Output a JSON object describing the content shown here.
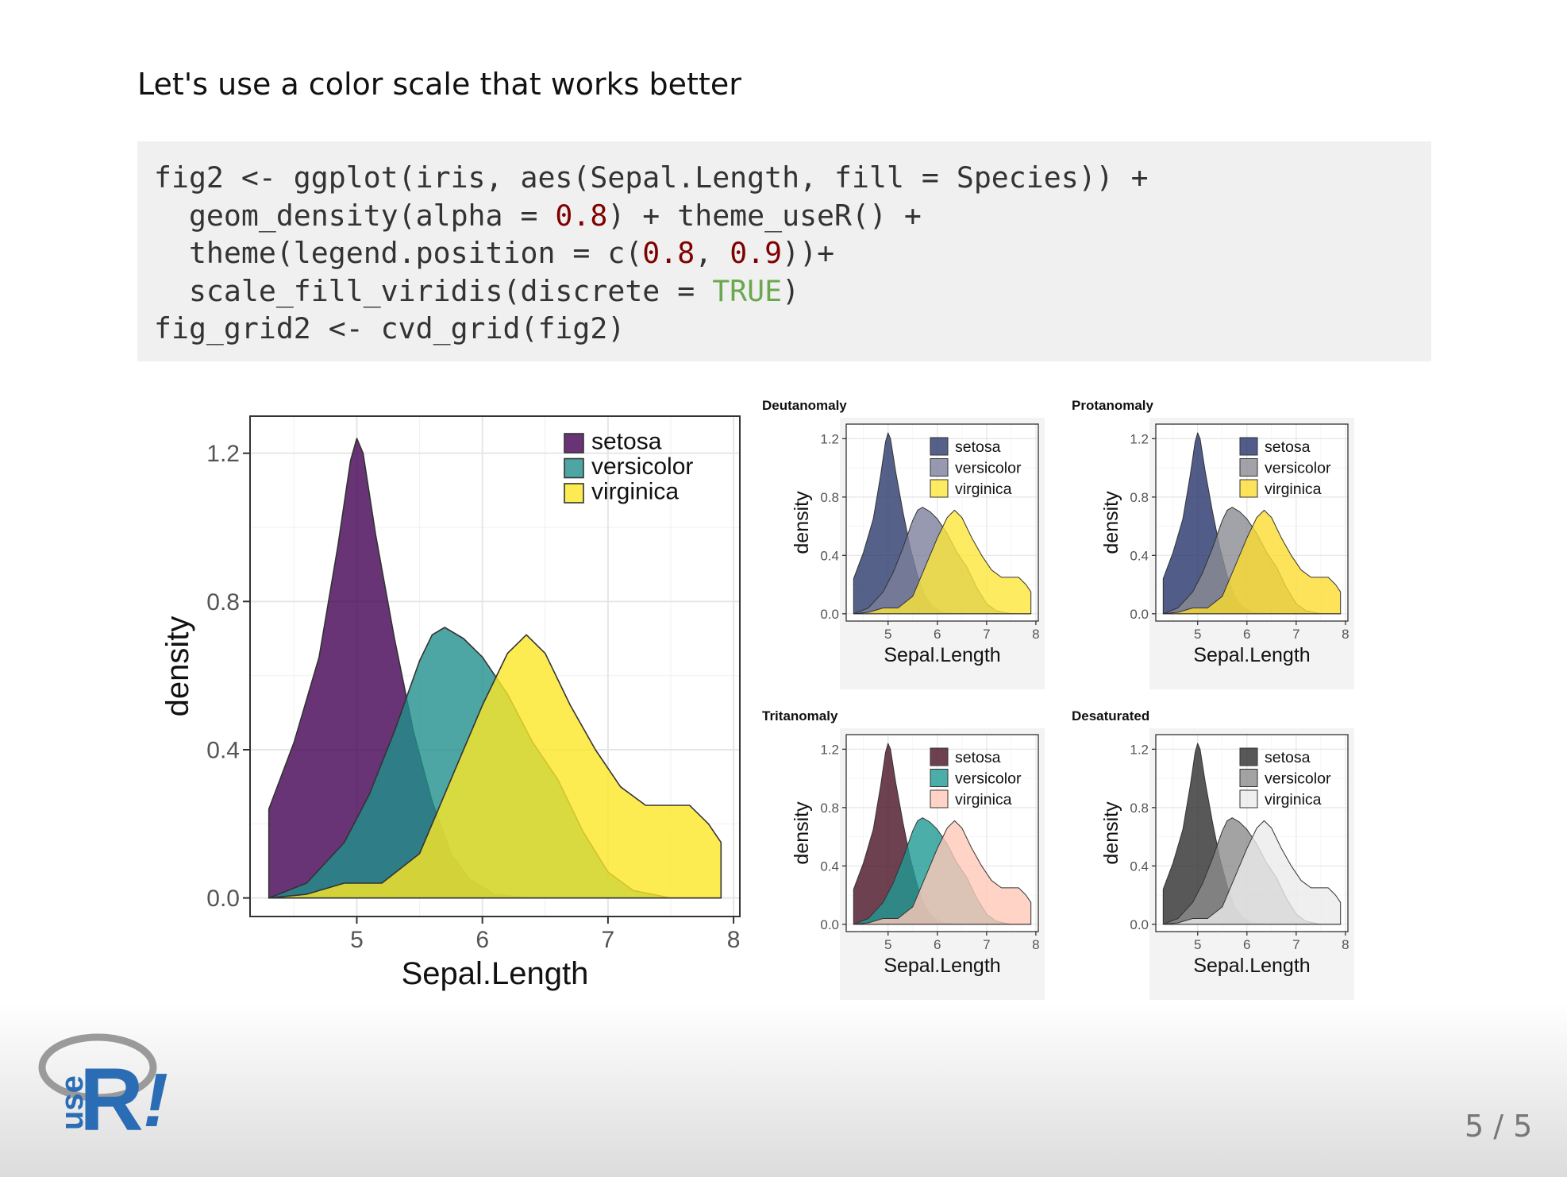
{
  "slide": {
    "heading": "Let's use a color scale that works better",
    "page_counter": "5 / 5"
  },
  "code": {
    "lines": [
      [
        {
          "t": "fig2 <- ggplot(iris, aes(Sepal.Length, fill = Species)) +"
        }
      ],
      [
        {
          "t": "  geom_density(alpha = "
        },
        {
          "t": "0.8",
          "c": "num"
        },
        {
          "t": ") + theme_useR() +"
        }
      ],
      [
        {
          "t": "  theme(legend.position = c("
        },
        {
          "t": "0.8",
          "c": "num"
        },
        {
          "t": ", "
        },
        {
          "t": "0.9",
          "c": "num"
        },
        {
          "t": "))+"
        }
      ],
      [
        {
          "t": "  scale_fill_viridis(discrete = "
        },
        {
          "t": "TRUE",
          "c": "bool"
        },
        {
          "t": ")"
        }
      ],
      [
        {
          "t": "fig_grid2 <- cvd_grid(fig2)"
        }
      ]
    ]
  },
  "logo": {
    "letter": "R",
    "bang": "!",
    "word": "use",
    "color": "#2a6db5"
  },
  "chart_data": [
    {
      "type": "area",
      "title": "",
      "xlabel": "Sepal.Length",
      "ylabel": "density",
      "xlim": [
        4.15,
        8.05
      ],
      "ylim": [
        -0.05,
        1.3
      ],
      "x_ticks": [
        "5",
        "6",
        "7",
        "8"
      ],
      "y_ticks": [
        "0.0",
        "0.4",
        "0.8",
        "1.2"
      ],
      "legend": "top-right",
      "grid": true,
      "series": [
        {
          "name": "setosa",
          "color": "#440154",
          "x": [
            4.3,
            4.5,
            4.7,
            4.85,
            4.95,
            5.0,
            5.05,
            5.15,
            5.3,
            5.45,
            5.6,
            5.75,
            5.9,
            6.1,
            6.4,
            7.9
          ],
          "y": [
            0.24,
            0.42,
            0.65,
            0.95,
            1.18,
            1.24,
            1.2,
            0.98,
            0.7,
            0.45,
            0.26,
            0.12,
            0.05,
            0.01,
            0.0,
            0.0
          ]
        },
        {
          "name": "versicolor",
          "color": "#21908C",
          "x": [
            4.3,
            4.6,
            4.9,
            5.1,
            5.3,
            5.5,
            5.6,
            5.7,
            5.85,
            6.0,
            6.2,
            6.4,
            6.6,
            6.8,
            7.0,
            7.2,
            7.5,
            7.9
          ],
          "y": [
            0.0,
            0.04,
            0.15,
            0.28,
            0.45,
            0.64,
            0.71,
            0.73,
            0.7,
            0.65,
            0.55,
            0.42,
            0.32,
            0.18,
            0.07,
            0.02,
            0.0,
            0.0
          ]
        },
        {
          "name": "virginica",
          "color": "#FDE725",
          "x": [
            4.3,
            4.6,
            4.9,
            5.2,
            5.5,
            5.8,
            6.0,
            6.2,
            6.35,
            6.5,
            6.7,
            6.9,
            7.1,
            7.3,
            7.5,
            7.65,
            7.8,
            7.9
          ],
          "y": [
            0.0,
            0.01,
            0.04,
            0.04,
            0.12,
            0.36,
            0.52,
            0.66,
            0.71,
            0.66,
            0.52,
            0.4,
            0.3,
            0.25,
            0.25,
            0.25,
            0.2,
            0.15
          ]
        }
      ]
    },
    {
      "type": "area",
      "title": "Deutanomaly",
      "xlabel": "Sepal.Length",
      "ylabel": "density",
      "xlim": [
        4.15,
        8.05
      ],
      "ylim": [
        -0.05,
        1.3
      ],
      "x_ticks": [
        "5",
        "6",
        "7",
        "8"
      ],
      "y_ticks": [
        "0.0",
        "0.4",
        "0.8",
        "1.2"
      ],
      "legend": "top-right",
      "grid": true,
      "series": [
        {
          "name": "setosa",
          "color": "#2a3a6b",
          "same_as": 0
        },
        {
          "name": "versicolor",
          "color": "#7d7f9c",
          "same_as": 1
        },
        {
          "name": "virginica",
          "color": "#fde63a",
          "same_as": 2
        }
      ]
    },
    {
      "type": "area",
      "title": "Protanomaly",
      "xlabel": "Sepal.Length",
      "ylabel": "density",
      "xlim": [
        4.15,
        8.05
      ],
      "ylim": [
        -0.05,
        1.3
      ],
      "x_ticks": [
        "5",
        "6",
        "7",
        "8"
      ],
      "y_ticks": [
        "0.0",
        "0.4",
        "0.8",
        "1.2"
      ],
      "legend": "top-right",
      "grid": true,
      "series": [
        {
          "name": "setosa",
          "color": "#25356a",
          "same_as": 0
        },
        {
          "name": "versicolor",
          "color": "#8a8c94",
          "same_as": 1
        },
        {
          "name": "virginica",
          "color": "#fcdc30",
          "same_as": 2
        }
      ]
    },
    {
      "type": "area",
      "title": "Tritanomaly",
      "xlabel": "Sepal.Length",
      "ylabel": "density",
      "xlim": [
        4.15,
        8.05
      ],
      "ylim": [
        -0.05,
        1.3
      ],
      "x_ticks": [
        "5",
        "6",
        "7",
        "8"
      ],
      "y_ticks": [
        "0.0",
        "0.4",
        "0.8",
        "1.2"
      ],
      "legend": "top-right",
      "grid": true,
      "series": [
        {
          "name": "setosa",
          "color": "#4a1226",
          "same_as": 0
        },
        {
          "name": "versicolor",
          "color": "#1f9a93",
          "same_as": 1
        },
        {
          "name": "virginica",
          "color": "#ffc9b8",
          "same_as": 2
        }
      ]
    },
    {
      "type": "area",
      "title": "Desaturated",
      "xlabel": "Sepal.Length",
      "ylabel": "density",
      "xlim": [
        4.15,
        8.05
      ],
      "ylim": [
        -0.05,
        1.3
      ],
      "x_ticks": [
        "5",
        "6",
        "7",
        "8"
      ],
      "y_ticks": [
        "0.0",
        "0.4",
        "0.8",
        "1.2"
      ],
      "legend": "top-right",
      "grid": true,
      "series": [
        {
          "name": "setosa",
          "color": "#2e2e2e",
          "same_as": 0
        },
        {
          "name": "versicolor",
          "color": "#8c8c8c",
          "same_as": 1
        },
        {
          "name": "virginica",
          "color": "#ebebeb",
          "same_as": 2
        }
      ]
    }
  ]
}
